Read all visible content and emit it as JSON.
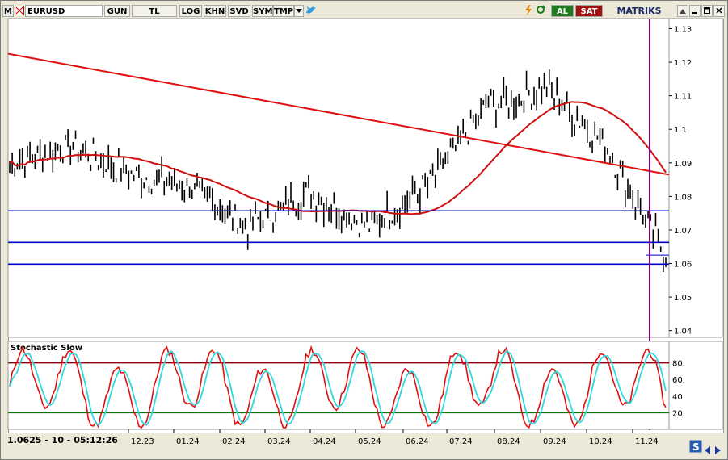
{
  "toolbar": {
    "m_btn": "M",
    "symbol": "EURUSD",
    "buttons": [
      "GUN",
      "TL",
      "LOG",
      "KHN",
      "SVD",
      "SYM",
      "TMP"
    ],
    "buy": "AL",
    "sell": "SAT",
    "brand": "MATRIKS"
  },
  "status_text": "1.0625 - 10 - 05:12:26",
  "indicator_title": "Stochastic Slow",
  "x_ticks": [
    "12.23",
    "01.24",
    "02.24",
    "03.24",
    "04.24",
    "05.24",
    "06.24",
    "07.24",
    "08.24",
    "09.24",
    "10.24",
    "11.24"
  ],
  "colors": {
    "trend": "#e01010",
    "ma": "#d01010",
    "support": "#0000cc",
    "cursor": "#800080",
    "stoch_k": "#e01010",
    "stoch_d": "#30d8e0",
    "overbought": "#8b0000",
    "oversold": "#007a00"
  },
  "chart_data": [
    {
      "type": "line",
      "yticks": [
        "1.13",
        "1.12",
        "1.11",
        "1.1",
        "1.09",
        "1.08",
        "1.07",
        "1.06",
        "1.05",
        "1.04"
      ],
      "ylim": [
        1.038,
        1.133
      ],
      "x": [
        "12.23",
        "01.24",
        "02.24",
        "03.24",
        "04.24",
        "05.24",
        "06.24",
        "07.24",
        "08.24",
        "09.24",
        "10.24",
        "11.24"
      ],
      "series": [
        {
          "values": [
            1.09,
            1.095,
            1.087,
            1.083,
            1.071,
            1.081,
            1.071,
            1.083,
            1.107,
            1.112,
            1.095,
            1.062
          ]
        }
      ],
      "hlines": [
        1.0757,
        1.0663,
        1.0598
      ]
    },
    {
      "type": "line",
      "yticks": [
        "80.",
        "60.",
        "40.",
        "20."
      ],
      "ylim": [
        0,
        100
      ],
      "x": [
        "12.23",
        "01.24",
        "02.24",
        "03.24",
        "04.24",
        "05.24",
        "06.24",
        "07.24",
        "08.24",
        "09.24",
        "10.24",
        "11.24"
      ],
      "series": [
        {
          "values": [
            30,
            85,
            25,
            80,
            18,
            78,
            30,
            85,
            80,
            70,
            20,
            40
          ]
        },
        {
          "values": [
            35,
            80,
            30,
            75,
            22,
            72,
            35,
            80,
            82,
            68,
            25,
            45
          ]
        }
      ],
      "hlines": [
        80,
        20
      ]
    }
  ]
}
